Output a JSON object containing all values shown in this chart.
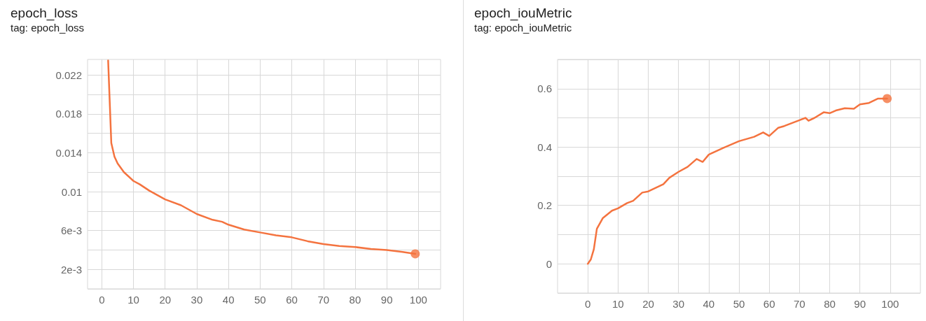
{
  "chart_data": [
    {
      "type": "line",
      "title": "epoch_loss",
      "subtitle": "tag: epoch_loss",
      "grid": true,
      "marker": "none",
      "line_style": "solid",
      "xlim": [
        -4.5,
        107
      ],
      "xticks": [
        0,
        10,
        20,
        30,
        40,
        50,
        60,
        70,
        80,
        90,
        100
      ],
      "ylim": [
        0,
        0.0236
      ],
      "yticks": [
        {
          "value": 0,
          "label": null
        },
        {
          "value": 0.002,
          "label": "2e-3"
        },
        {
          "value": 0.004,
          "label": null
        },
        {
          "value": 0.006,
          "label": "6e-3"
        },
        {
          "value": 0.008,
          "label": null
        },
        {
          "value": 0.01,
          "label": "0.01"
        },
        {
          "value": 0.012,
          "label": null
        },
        {
          "value": 0.014,
          "label": "0.014"
        },
        {
          "value": 0.016,
          "label": null
        },
        {
          "value": 0.018,
          "label": "0.018"
        },
        {
          "value": 0.02,
          "label": null
        },
        {
          "value": 0.022,
          "label": "0.022"
        }
      ],
      "series": [
        {
          "color": "#f4733f",
          "x": [
            2,
            3,
            4,
            5,
            7,
            10,
            12,
            15,
            20,
            25,
            30,
            35,
            38,
            40,
            45,
            50,
            55,
            60,
            65,
            70,
            75,
            80,
            85,
            90,
            95,
            99
          ],
          "values": [
            0.0235,
            0.015,
            0.0136,
            0.0129,
            0.012,
            0.0111,
            0.01075,
            0.0101,
            0.0092,
            0.0086,
            0.0077,
            0.0071,
            0.0069,
            0.0066,
            0.0061,
            0.0058,
            0.0055,
            0.0053,
            0.0049,
            0.0046,
            0.0044,
            0.0043,
            0.0041,
            0.004,
            0.0038,
            0.0036
          ]
        },
        {
          "type": "scatter",
          "marker": "circle",
          "color": "#f4733f",
          "x": [
            99
          ],
          "values": [
            0.0036
          ]
        }
      ]
    },
    {
      "type": "line",
      "title": "epoch_iouMetric",
      "subtitle": "tag: epoch_iouMetric",
      "grid": true,
      "marker": "none",
      "line_style": "solid",
      "xlim": [
        -10,
        110
      ],
      "xticks": [
        0,
        10,
        20,
        30,
        40,
        50,
        60,
        70,
        80,
        90,
        100
      ],
      "ylim": [
        -0.1,
        0.7
      ],
      "yticks": [
        {
          "value": -0.1,
          "label": null
        },
        0,
        {
          "value": 0.1,
          "label": null
        },
        0.2,
        {
          "value": 0.3,
          "label": null
        },
        0.4,
        {
          "value": 0.5,
          "label": null
        },
        0.6,
        {
          "value": 0.7,
          "label": null
        }
      ],
      "series": [
        {
          "color": "#f4733f",
          "x": [
            0,
            1,
            2,
            3,
            5,
            8,
            10,
            13,
            15,
            18,
            20,
            25,
            27,
            30,
            33,
            36,
            38,
            40,
            45,
            50,
            55,
            58,
            60,
            63,
            65,
            70,
            72,
            73,
            75,
            78,
            80,
            82,
            85,
            88,
            90,
            93,
            96,
            99
          ],
          "values": [
            0,
            0.015,
            0.05,
            0.12,
            0.157,
            0.182,
            0.19,
            0.208,
            0.216,
            0.244,
            0.248,
            0.273,
            0.295,
            0.315,
            0.332,
            0.359,
            0.349,
            0.374,
            0.398,
            0.42,
            0.435,
            0.45,
            0.438,
            0.466,
            0.472,
            0.492,
            0.5,
            0.49,
            0.5,
            0.519,
            0.516,
            0.525,
            0.533,
            0.531,
            0.546,
            0.551,
            0.566,
            0.566
          ]
        },
        {
          "type": "scatter",
          "marker": "circle",
          "color": "#f4733f",
          "x": [
            99
          ],
          "values": [
            0.566
          ]
        }
      ]
    }
  ]
}
